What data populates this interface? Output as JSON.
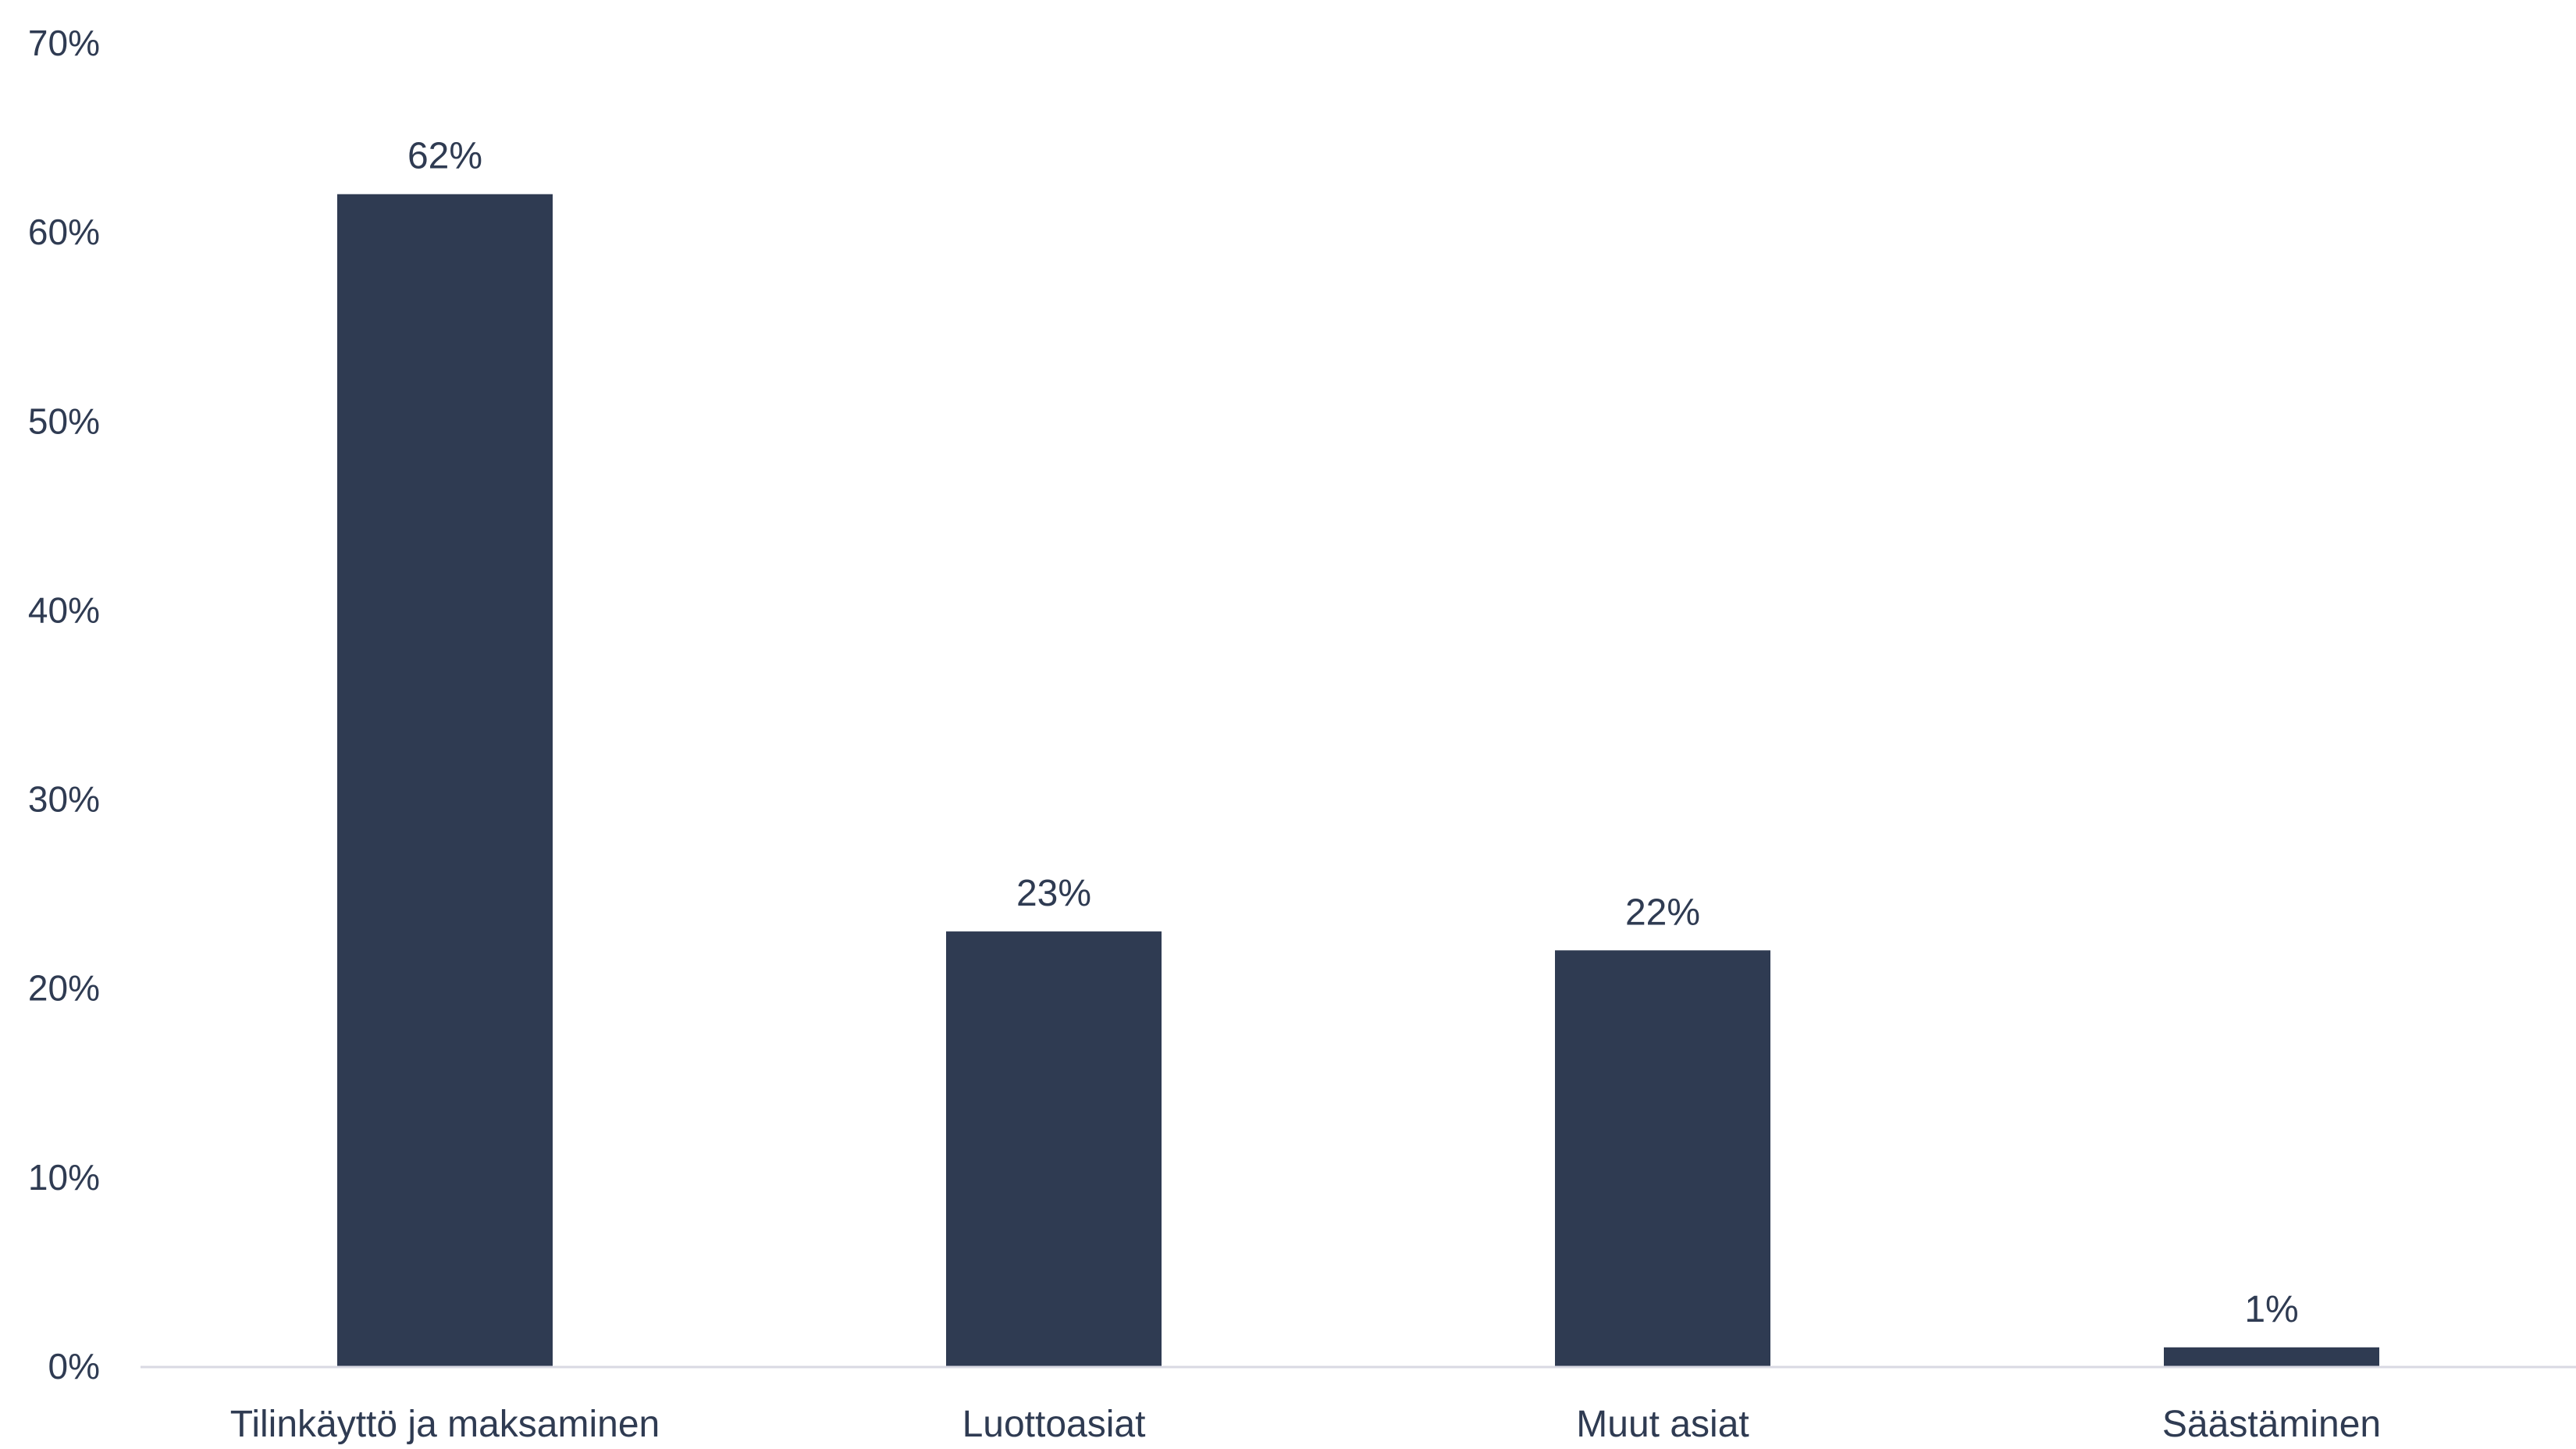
{
  "chart_data": {
    "type": "bar",
    "title": "",
    "xlabel": "",
    "ylabel": "",
    "categories": [
      "Tilinkäyttö ja maksaminen",
      "Luottoasiat",
      "Muut asiat",
      "Säästäminen"
    ],
    "values": [
      62,
      23,
      22,
      1
    ],
    "data_labels": [
      "62%",
      "23%",
      "22%",
      "1%"
    ],
    "ylim": [
      0,
      70
    ],
    "y_ticks": [
      0,
      10,
      20,
      30,
      40,
      50,
      60,
      70
    ],
    "y_tick_labels": [
      "0%",
      "10%",
      "20%",
      "30%",
      "40%",
      "50%",
      "60%",
      "70%"
    ],
    "grid": false,
    "legend": "none",
    "colors": {
      "bar": "#2f3b52",
      "text": "#2f3b52",
      "axis": "#d9d9e3",
      "background": "#ffffff"
    }
  }
}
